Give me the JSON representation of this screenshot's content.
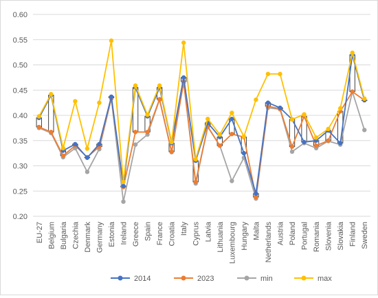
{
  "chart_data": {
    "type": "line",
    "categories": [
      "EU-27",
      "Belgium",
      "Bulgaria",
      "Czechia",
      "Denmark",
      "Germany",
      "Estonia",
      "Ireland",
      "Greece",
      "Spain",
      "France",
      "Croatia",
      "Italy",
      "Cyprus",
      "Latvia",
      "Lithuania",
      "Luxembourg",
      "Hungary",
      "Malta",
      "Netherlands",
      "Austria",
      "Poland",
      "Portugal",
      "Romania",
      "Slovenia",
      "Slovakia",
      "Finland",
      "Sweden"
    ],
    "ylim": [
      0.2,
      0.6
    ],
    "yticks": [
      "0.20",
      "0.25",
      "0.30",
      "0.35",
      "0.40",
      "0.45",
      "0.50",
      "0.55",
      "0.60"
    ],
    "grid": true,
    "legend_position": "bottom",
    "series": [
      {
        "name": "2014",
        "color": "#4472c4",
        "values": [
          0.395,
          0.44,
          0.33,
          0.343,
          0.316,
          0.343,
          0.437,
          0.26,
          0.455,
          0.398,
          0.455,
          0.345,
          0.475,
          0.31,
          0.385,
          0.357,
          0.393,
          0.325,
          0.245,
          0.425,
          0.415,
          0.392,
          0.347,
          0.35,
          0.37,
          0.345,
          0.52,
          0.43
        ]
      },
      {
        "name": "2023",
        "color": "#ed7d31",
        "values": [
          0.377,
          0.367,
          0.32,
          0.34,
          0.317,
          0.338,
          0.435,
          0.258,
          0.367,
          0.367,
          0.432,
          0.328,
          0.467,
          0.268,
          0.378,
          0.34,
          0.363,
          0.357,
          0.238,
          0.418,
          0.413,
          0.338,
          0.398,
          0.34,
          0.35,
          0.408,
          0.447,
          0.43
        ]
      },
      {
        "name": "min",
        "color": "#a5a5a5",
        "values": [
          0.375,
          0.365,
          0.317,
          0.335,
          0.288,
          0.333,
          0.433,
          0.229,
          0.342,
          0.362,
          0.431,
          0.327,
          0.465,
          0.265,
          0.377,
          0.34,
          0.27,
          0.316,
          0.235,
          0.415,
          0.412,
          0.328,
          0.345,
          0.335,
          0.349,
          0.342,
          0.447,
          0.371
        ]
      },
      {
        "name": "max",
        "color": "#ffc000",
        "values": [
          0.398,
          0.442,
          0.335,
          0.428,
          0.334,
          0.425,
          0.548,
          0.268,
          0.459,
          0.401,
          0.459,
          0.347,
          0.544,
          0.313,
          0.393,
          0.362,
          0.405,
          0.358,
          0.431,
          0.482,
          0.482,
          0.392,
          0.402,
          0.356,
          0.373,
          0.414,
          0.524,
          0.433
        ]
      }
    ]
  }
}
